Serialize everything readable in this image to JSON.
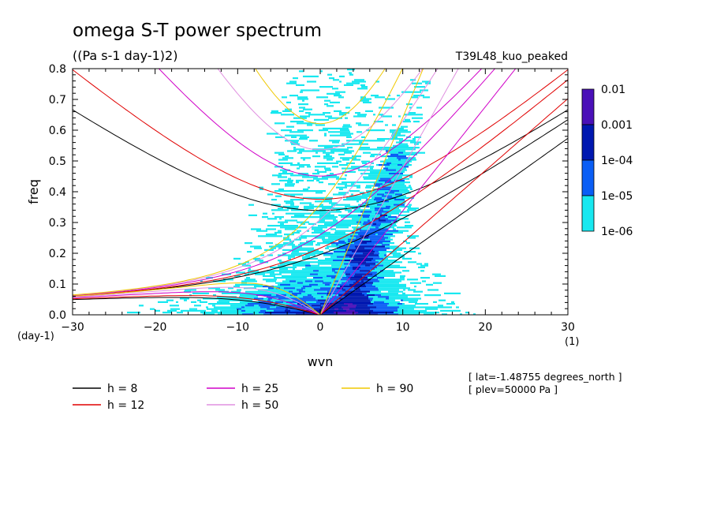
{
  "chart_data": {
    "type": "heatmap",
    "title": "omega S-T power spectrum",
    "subtitle": "((Pa s-1 day-1)2)",
    "run_label": "T39L48_kuo_peaked",
    "xlabel": "wvn",
    "ylabel": "freq",
    "x_unit": "(1)",
    "y_unit": "(day-1)",
    "xlim": [
      -30,
      30
    ],
    "ylim": [
      0,
      0.8
    ],
    "x_ticks": [
      -30,
      -20,
      -10,
      0,
      10,
      20,
      30
    ],
    "y_ticks": [
      0.0,
      0.1,
      0.2,
      0.3,
      0.4,
      0.5,
      0.6,
      0.7,
      0.8
    ],
    "grid": false,
    "colorbar": {
      "levels": [
        "0.01",
        "0.001",
        "1e-04",
        "1e-05",
        "1e-06"
      ],
      "colors": [
        "#4a10b8",
        "#0018b0",
        "#0a5ef5",
        "#18e8f0"
      ]
    },
    "dispersion_curves": [
      {
        "label": "h =  8",
        "h": 8,
        "color": "#000000"
      },
      {
        "label": "h = 12",
        "h": 12,
        "color": "#e00000"
      },
      {
        "label": "h = 25",
        "h": 25,
        "color": "#d000c8"
      },
      {
        "label": "h = 50",
        "h": 50,
        "color": "#e090e0"
      },
      {
        "label": "h = 90",
        "h": 90,
        "color": "#f0c800"
      }
    ],
    "annotations": [
      "[ lat=-1.48755 degrees_north ]",
      "[ plev=50000 Pa ]"
    ]
  }
}
